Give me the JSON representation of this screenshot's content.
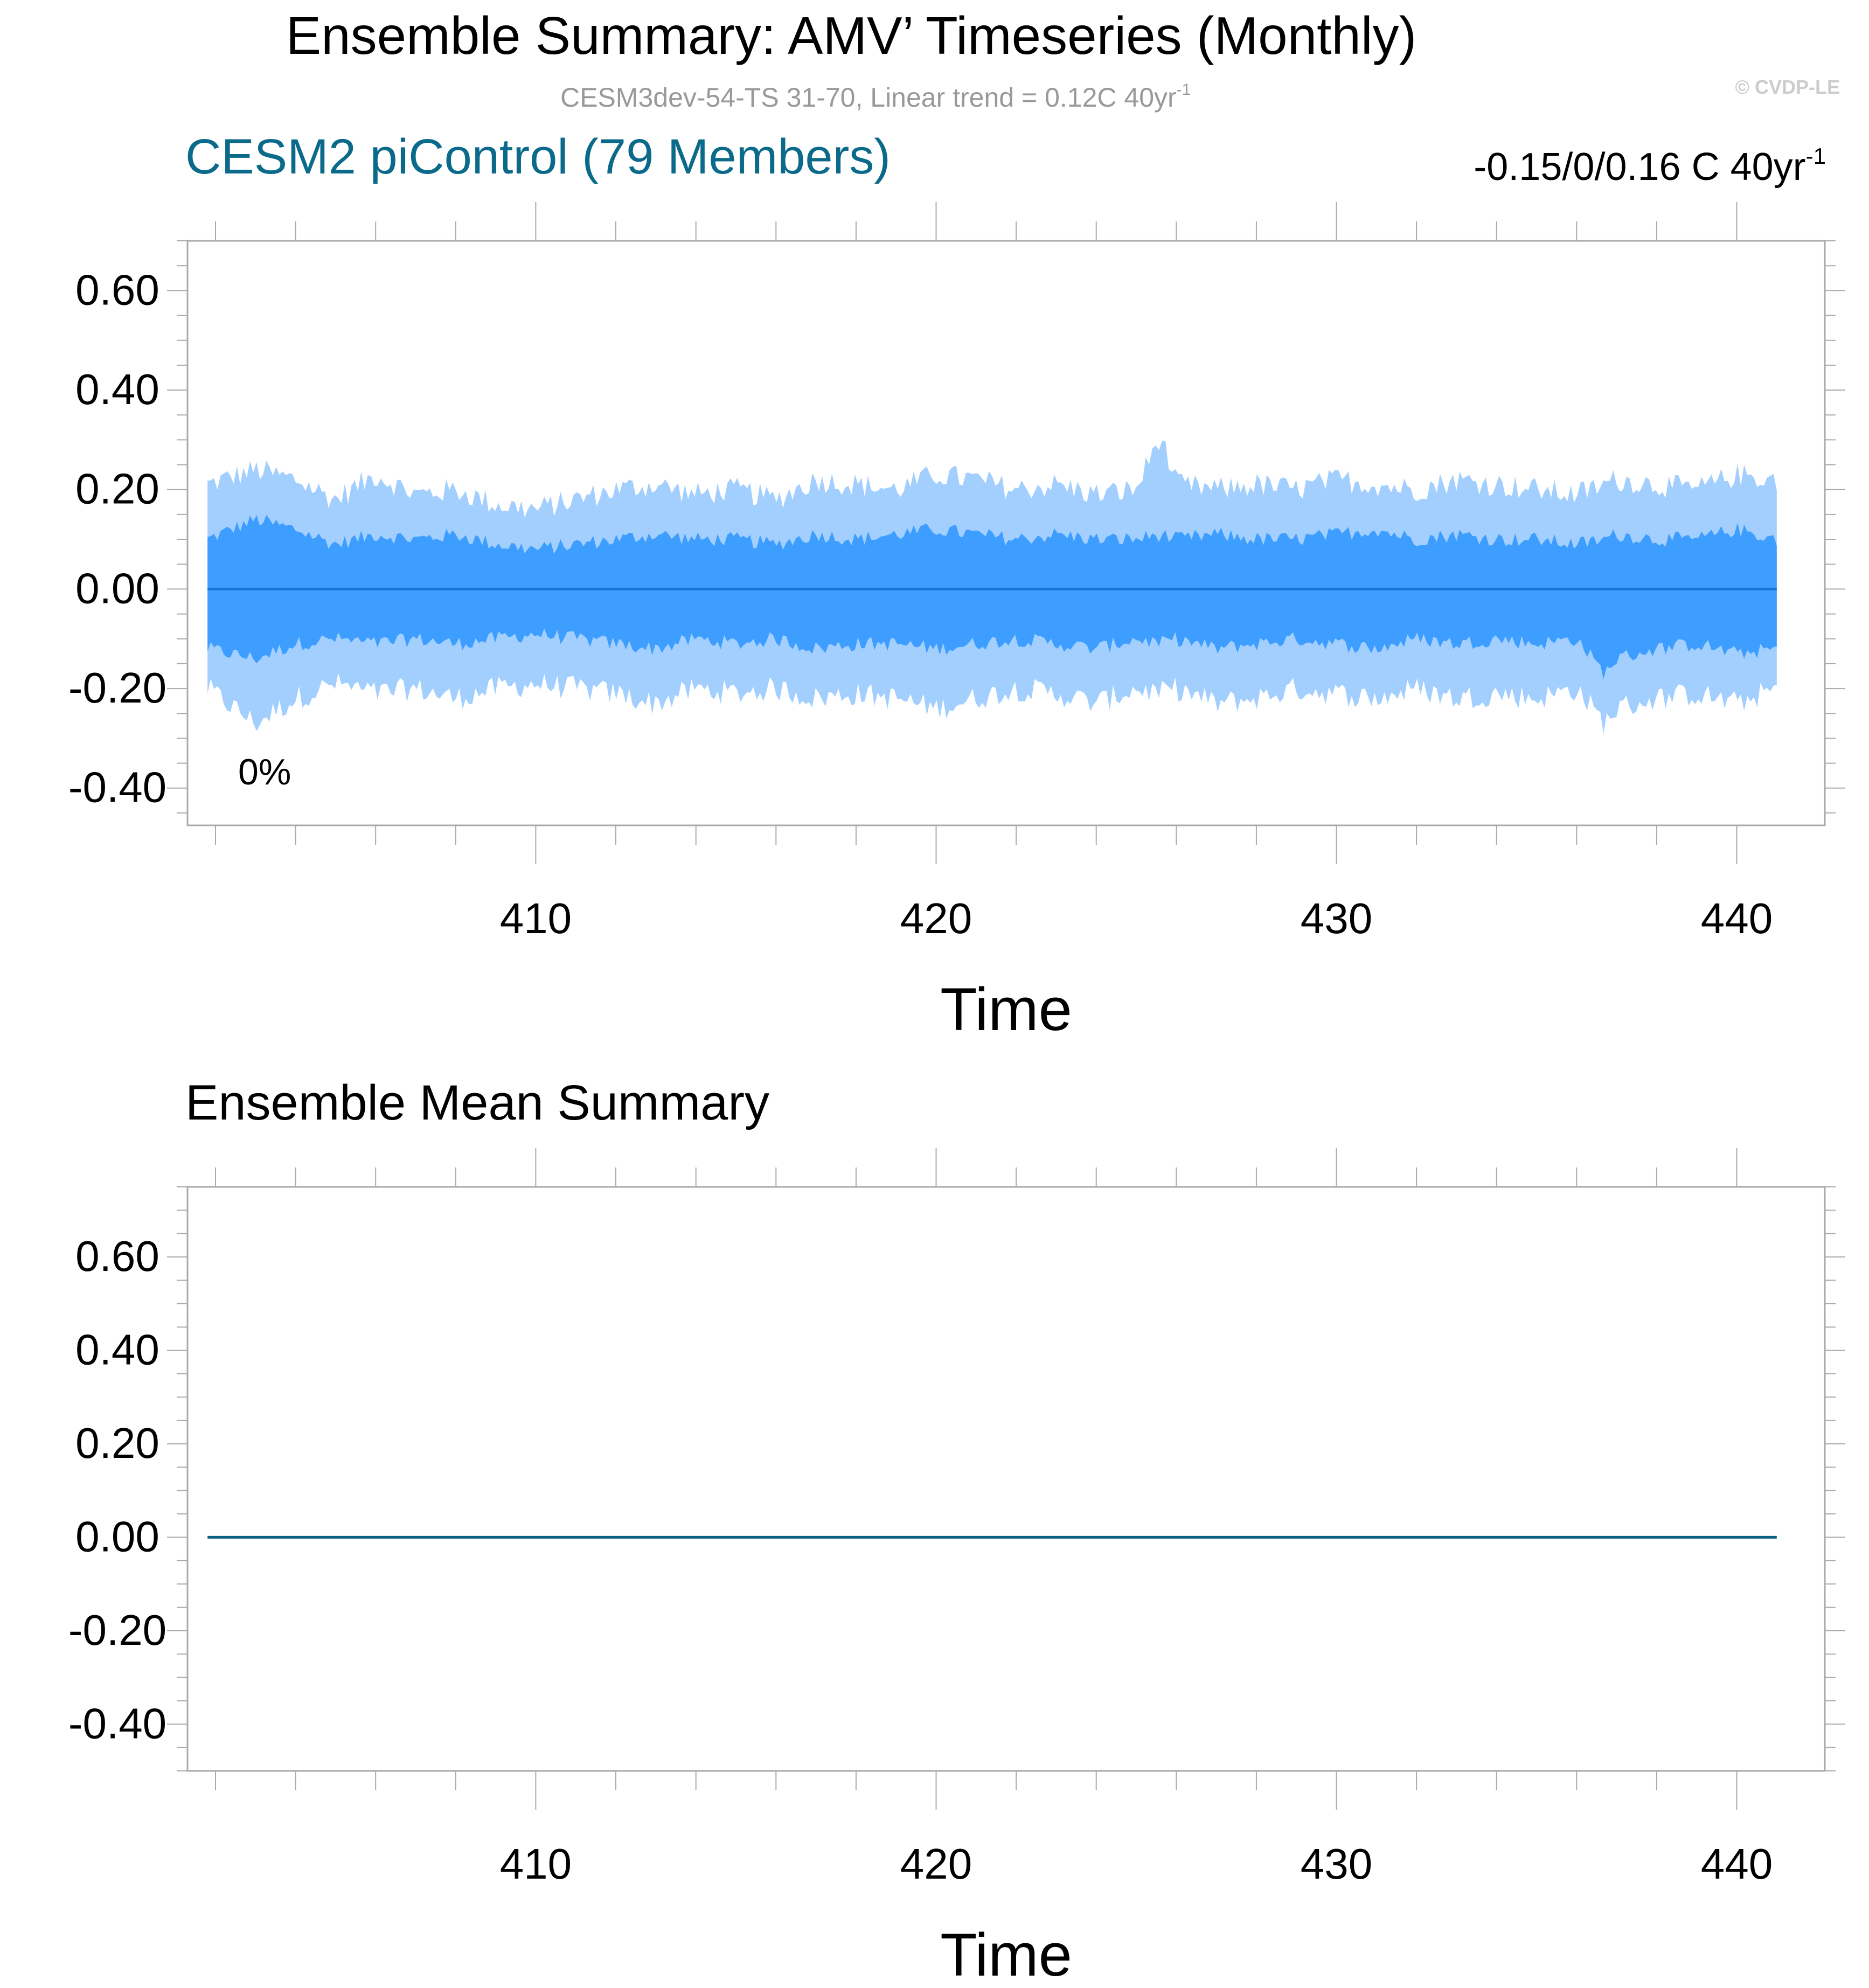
{
  "header": {
    "title": "Ensemble Summary: AMV’ Timeseries (Monthly)",
    "subtitle_main": "CESM3dev-54-TS 31-70, Linear trend = 0.12C 40yr",
    "subtitle_sup": "-1",
    "watermark": "© CVDP-LE"
  },
  "colors": {
    "outer_band": "#a3cfff",
    "inner_band": "#3d9eff",
    "median_line": "#1c75d4",
    "mean_line": "#0b6182",
    "title_teal": "#0b6a8a",
    "subtitle_gray": "#999999",
    "watermark_gray": "#cccccc",
    "frame": "#aaaaaa"
  },
  "chart_data": [
    {
      "type": "area",
      "title": "CESM2 piControl (79 Members)",
      "trend_text": "-0.15/0/0.16 C 40yr",
      "trend_sup": "-1",
      "annotation": "0%",
      "xlabel": "Time",
      "ylabel": "",
      "xlim": [
        401.3,
        442.2
      ],
      "ylim": [
        -0.475,
        0.7
      ],
      "xticks": [
        410,
        420,
        430,
        440
      ],
      "xtick_labels": [
        "410",
        "420",
        "430",
        "440"
      ],
      "yticks": [
        0.6,
        0.4,
        0.2,
        0.0,
        -0.2,
        -0.4
      ],
      "ytick_labels": [
        "0.60",
        "0.40",
        "0.20",
        "0.00",
        "-0.20",
        "-0.40"
      ],
      "series": [
        {
          "name": "",
          "x": [
            401.8,
            403,
            404,
            405,
            406,
            407,
            408,
            409,
            410,
            411,
            412,
            413,
            414,
            415,
            416,
            417,
            418,
            419,
            420,
            421,
            422,
            423,
            424,
            425,
            425.6,
            426,
            427,
            428,
            429,
            430,
            431,
            432,
            433,
            434,
            435,
            436,
            436.7,
            437,
            438,
            439,
            440,
            441.0
          ],
          "outer_upper": [
            0.21,
            0.24,
            0.22,
            0.18,
            0.23,
            0.19,
            0.2,
            0.17,
            0.16,
            0.18,
            0.2,
            0.21,
            0.19,
            0.2,
            0.18,
            0.22,
            0.21,
            0.2,
            0.23,
            0.22,
            0.2,
            0.21,
            0.19,
            0.2,
            0.31,
            0.21,
            0.2,
            0.21,
            0.2,
            0.22,
            0.21,
            0.2,
            0.22,
            0.21,
            0.2,
            0.19,
            0.21,
            0.22,
            0.21,
            0.2,
            0.23,
            0.22
          ],
          "inner_upper": [
            0.1,
            0.14,
            0.12,
            0.09,
            0.11,
            0.1,
            0.11,
            0.09,
            0.08,
            0.09,
            0.1,
            0.11,
            0.1,
            0.1,
            0.09,
            0.11,
            0.1,
            0.11,
            0.12,
            0.11,
            0.1,
            0.11,
            0.1,
            0.1,
            0.11,
            0.1,
            0.11,
            0.1,
            0.1,
            0.11,
            0.12,
            0.1,
            0.11,
            0.1,
            0.1,
            0.09,
            0.1,
            0.11,
            0.1,
            0.1,
            0.12,
            0.1
          ],
          "median": [
            0,
            0,
            0,
            0,
            0,
            0,
            0,
            0,
            0,
            0,
            0,
            0,
            0,
            0,
            0,
            0,
            0,
            0,
            0,
            0,
            0,
            0,
            0,
            0,
            0,
            0,
            0,
            0,
            0,
            0,
            0,
            0,
            0,
            0,
            0,
            0,
            0,
            0,
            0,
            0,
            0,
            0
          ],
          "inner_lower": [
            -0.12,
            -0.14,
            -0.11,
            -0.1,
            -0.11,
            -0.1,
            -0.11,
            -0.1,
            -0.09,
            -0.1,
            -0.11,
            -0.12,
            -0.1,
            -0.11,
            -0.1,
            -0.12,
            -0.11,
            -0.11,
            -0.12,
            -0.11,
            -0.1,
            -0.11,
            -0.12,
            -0.1,
            -0.11,
            -0.1,
            -0.12,
            -0.11,
            -0.1,
            -0.11,
            -0.12,
            -0.1,
            -0.11,
            -0.1,
            -0.11,
            -0.1,
            -0.17,
            -0.14,
            -0.12,
            -0.11,
            -0.13,
            -0.12
          ],
          "outer_lower": [
            -0.2,
            -0.27,
            -0.22,
            -0.19,
            -0.21,
            -0.2,
            -0.22,
            -0.2,
            -0.19,
            -0.2,
            -0.21,
            -0.23,
            -0.2,
            -0.21,
            -0.2,
            -0.22,
            -0.21,
            -0.22,
            -0.24,
            -0.22,
            -0.2,
            -0.21,
            -0.23,
            -0.2,
            -0.21,
            -0.2,
            -0.23,
            -0.22,
            -0.2,
            -0.21,
            -0.22,
            -0.2,
            -0.22,
            -0.21,
            -0.22,
            -0.2,
            -0.27,
            -0.24,
            -0.22,
            -0.21,
            -0.23,
            -0.2
          ]
        }
      ]
    },
    {
      "type": "line",
      "title": "Ensemble Mean Summary",
      "xlabel": "Time",
      "ylabel": "",
      "xlim": [
        401.3,
        442.2
      ],
      "ylim": [
        -0.5,
        0.75
      ],
      "xticks": [
        410,
        420,
        430,
        440
      ],
      "xtick_labels": [
        "410",
        "420",
        "430",
        "440"
      ],
      "yticks": [
        0.6,
        0.4,
        0.2,
        0.0,
        -0.2,
        -0.4
      ],
      "ytick_labels": [
        "0.60",
        "0.40",
        "0.20",
        "0.00",
        "-0.20",
        "-0.40"
      ],
      "series": [
        {
          "name": "",
          "x": [
            401.8,
            441.0
          ],
          "y": [
            0,
            0
          ]
        }
      ]
    }
  ]
}
